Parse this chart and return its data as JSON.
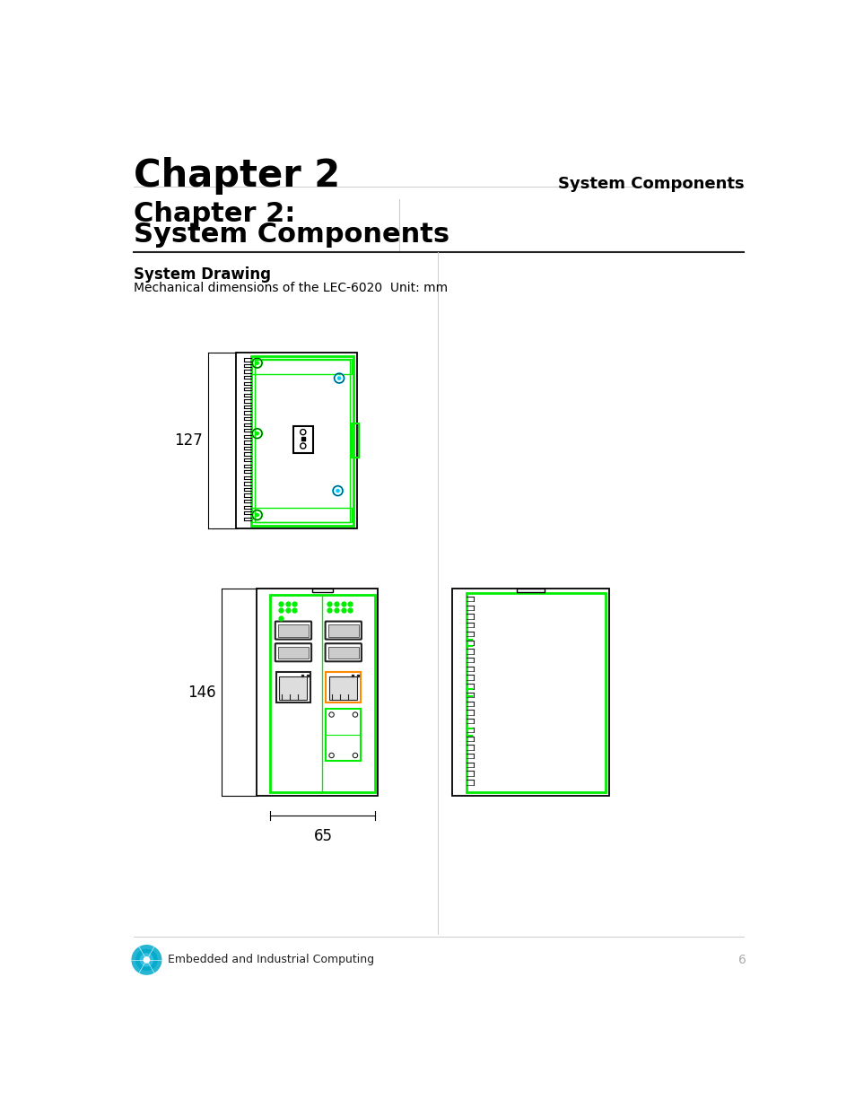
{
  "bg_color": "#ffffff",
  "page_title": "Chapter 2",
  "page_subtitle": "System Components",
  "section_title_line1": "Chapter 2:",
  "section_title_line2": "System Components",
  "subsection_title": "System Drawing",
  "description": "Mechanical dimensions of the LEC-6020  Unit: mm",
  "footer_text": "Embedded and Industrial Computing",
  "page_number": "6",
  "green_color": "#00ee00",
  "dark_color": "#222222",
  "dim_label_127": "127",
  "dim_label_146": "146",
  "dim_label_65": "65"
}
